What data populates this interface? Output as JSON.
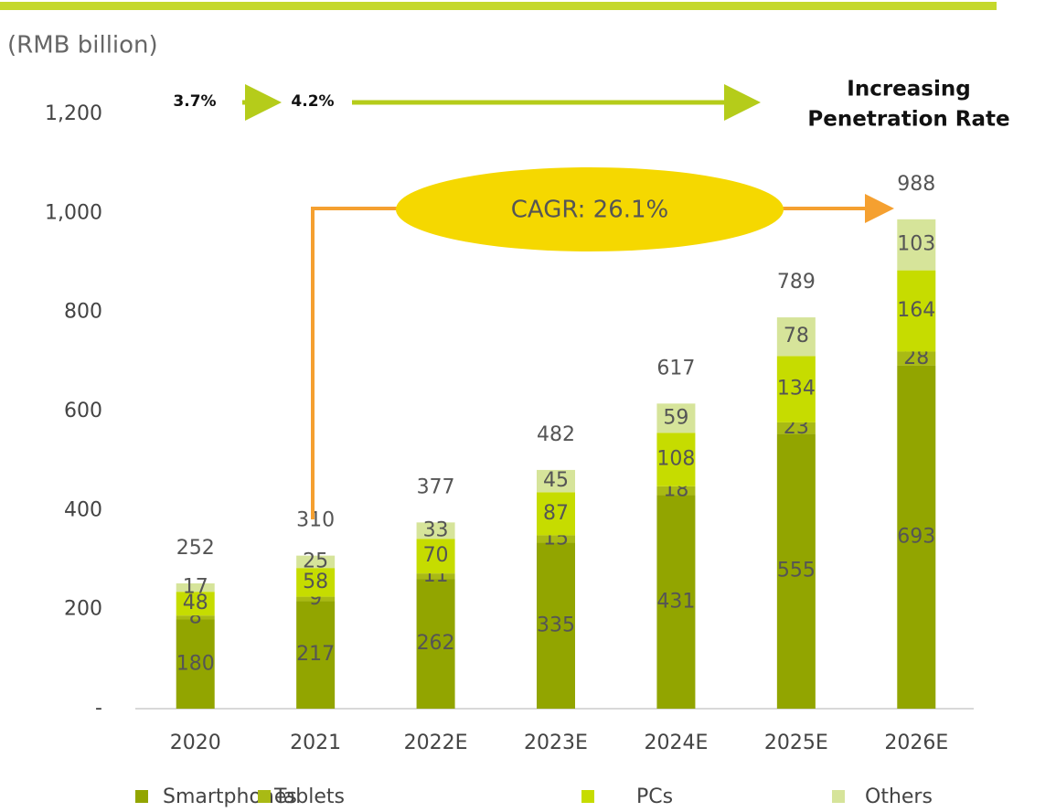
{
  "chart_data": {
    "type": "stacked_bar",
    "y_unit": "(RMB billion)",
    "categories": [
      "2020",
      "2021",
      "2022E",
      "2023E",
      "2024E",
      "2025E",
      "2026E"
    ],
    "series": [
      {
        "name": "Smartphones",
        "color": "#92a500",
        "values": [
          180,
          217,
          262,
          335,
          431,
          555,
          693
        ]
      },
      {
        "name": "Tablets",
        "color": "#a9ba14",
        "values": [
          8,
          9,
          11,
          15,
          18,
          23,
          28
        ]
      },
      {
        "name": "PCs",
        "color": "#c6dc00",
        "values": [
          48,
          58,
          70,
          87,
          108,
          134,
          164
        ]
      },
      {
        "name": "Others",
        "color": "#d6e49a",
        "values": [
          17,
          25,
          33,
          45,
          59,
          78,
          103
        ]
      }
    ],
    "totals": [
      252,
      310,
      377,
      482,
      617,
      789,
      988
    ],
    "ylim": [
      0,
      1200
    ],
    "yticks": [
      {
        "value": 0,
        "label": "-"
      },
      200,
      400,
      600,
      800,
      {
        "value": 1000,
        "label": "1,000"
      },
      {
        "value": 1200,
        "label": "1,200"
      }
    ],
    "annotations": {
      "rate_start": "3.7%",
      "rate_next": "4.2%",
      "rate_title_1": "Increasing",
      "rate_title_2": "Penetration Rate",
      "cagr": "CAGR: 26.1%"
    }
  }
}
